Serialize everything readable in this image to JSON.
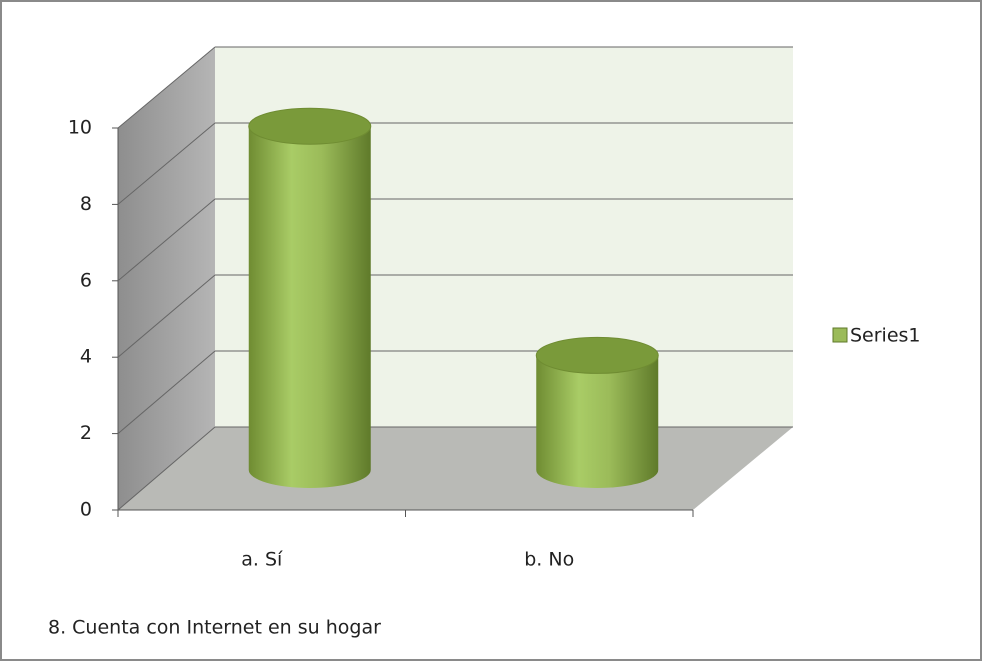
{
  "chart_data": {
    "type": "bar3d",
    "title": "8. Cuenta con Internet en su hogar",
    "categories": [
      "a. Sí",
      "b. No"
    ],
    "series": [
      {
        "name": "Series1",
        "color": "#9bbb59",
        "values": [
          9,
          3
        ]
      }
    ],
    "ylim": [
      0,
      10
    ],
    "yticks": [
      0,
      2,
      4,
      6,
      8,
      10
    ],
    "grid": true,
    "legend": "right"
  }
}
